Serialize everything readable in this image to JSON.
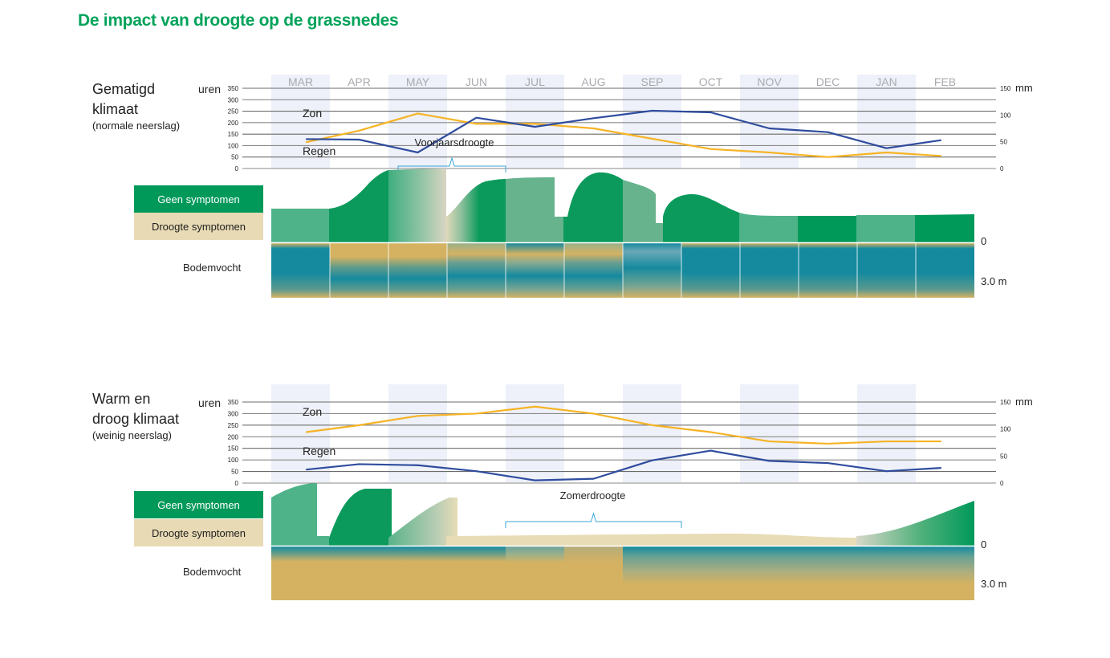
{
  "title": "De impact van droogte op de grassnedes",
  "colors": {
    "title": "#00a35a",
    "sun_line": "#f6b324",
    "rain_line": "#2f4c9e",
    "no_symptoms": "#00995a",
    "drought_symptoms": "#e8dab4",
    "soil_wet": "#158a9f",
    "soil_dry": "#d4b262",
    "month_band": "#eef1f9"
  },
  "legend": {
    "no_symptoms": "Geen symptomen",
    "drought_symptoms": "Droogte symptomen",
    "soil": "Bodemvocht"
  },
  "chart_data": [
    {
      "type": "line",
      "panel_title": [
        "Gematigd",
        "klimaat"
      ],
      "panel_subtitle": "(normale neerslag)",
      "categories": [
        "MAR",
        "APR",
        "MAY",
        "JUN",
        "JUL",
        "AUG",
        "SEP",
        "OCT",
        "NOV",
        "DEC",
        "JAN",
        "FEB"
      ],
      "y_left": {
        "label": "uren",
        "ticks": [
          350,
          300,
          250,
          200,
          150,
          100,
          50,
          0
        ],
        "range": [
          0,
          350
        ]
      },
      "y_right": {
        "label": "mm",
        "ticks": [
          150,
          100,
          50,
          0
        ],
        "range": [
          0,
          150
        ]
      },
      "series": [
        {
          "name": "Zon",
          "axis": "left",
          "color": "#f6b324",
          "values": [
            115,
            165,
            240,
            195,
            195,
            175,
            130,
            85,
            70,
            50,
            70,
            55
          ]
        },
        {
          "name": "Regen",
          "axis": "right",
          "color": "#2f4c9e",
          "values": [
            55,
            54,
            30,
            95,
            78,
            94,
            108,
            105,
            75,
            68,
            38,
            53
          ]
        }
      ],
      "drought_period": {
        "label": "Voorjaarsdroogte",
        "from": "MAY",
        "to": "JUN"
      },
      "soil_depth": {
        "top": "0",
        "bottom": "3.0 m"
      }
    },
    {
      "type": "line",
      "panel_title": [
        "Warm en",
        "droog klimaat"
      ],
      "panel_subtitle": "(weinig neerslag)",
      "categories": [
        "MAR",
        "APR",
        "MAY",
        "JUN",
        "JUL",
        "AUG",
        "SEP",
        "OCT",
        "NOV",
        "DEC",
        "JAN",
        "FEB"
      ],
      "y_left": {
        "label": "uren",
        "ticks": [
          350,
          300,
          250,
          200,
          150,
          100,
          50,
          0
        ],
        "range": [
          0,
          350
        ]
      },
      "y_right": {
        "label": "mm",
        "ticks": [
          150,
          100,
          50,
          0
        ],
        "range": [
          0,
          150
        ]
      },
      "series": [
        {
          "name": "Zon",
          "axis": "left",
          "color": "#f6b324",
          "values": [
            220,
            250,
            290,
            300,
            330,
            300,
            250,
            220,
            180,
            170,
            180,
            180
          ]
        },
        {
          "name": "Regen",
          "axis": "right",
          "color": "#2f4c9e",
          "values": [
            25,
            35,
            33,
            22,
            5,
            8,
            42,
            60,
            41,
            37,
            22,
            28
          ]
        }
      ],
      "drought_period": {
        "label": "Zomerdroogte",
        "from": "JUL",
        "to": "SEP"
      },
      "soil_depth": {
        "top": "0",
        "bottom": "3.0 m"
      }
    }
  ]
}
